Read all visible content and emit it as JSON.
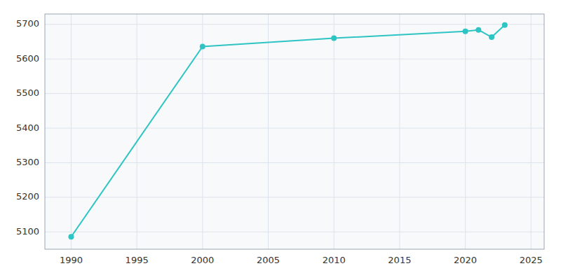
{
  "chart_data": {
    "type": "line",
    "x": [
      1990,
      2000,
      2010,
      2020,
      2021,
      2022,
      2023
    ],
    "values": [
      5086,
      5636,
      5660,
      5680,
      5684,
      5663,
      5698
    ],
    "color": "#2EC4C4",
    "marker": "circle",
    "xlim": [
      1988,
      2026
    ],
    "ylim": [
      5050,
      5730
    ],
    "xticks": [
      1990,
      1995,
      2000,
      2005,
      2010,
      2015,
      2020,
      2025
    ],
    "yticks": [
      5100,
      5200,
      5300,
      5400,
      5500,
      5600,
      5700
    ],
    "grid": true
  }
}
